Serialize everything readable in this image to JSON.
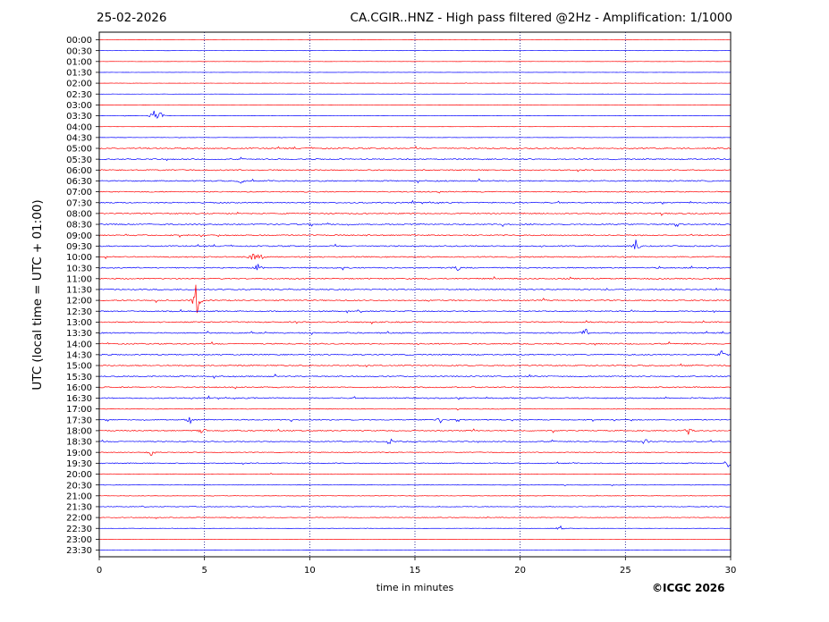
{
  "header": {
    "date": "25-02-2026",
    "title": "CA.CGIR..HNZ - High pass filtered @2Hz - Amplification: 1/1000"
  },
  "copyright": "©ICGC 2026",
  "colors": {
    "trace_a": "#ff0000",
    "trace_b": "#0000ff",
    "axis": "#000000",
    "grid": "#000080"
  },
  "chart_data": {
    "type": "line",
    "title": "CA.CGIR..HNZ - High pass filtered @2Hz - Amplification: 1/1000",
    "xlabel": "time in minutes",
    "ylabel": "UTC (local time = UTC + 01:00)",
    "xlim": [
      0,
      30
    ],
    "x_ticks": [
      0,
      5,
      10,
      15,
      20,
      25,
      30
    ],
    "grid": "vertical dotted lines at 5-minute intervals",
    "trace_color_cycle": [
      "red",
      "blue"
    ],
    "rows": [
      "00:00",
      "00:30",
      "01:00",
      "01:30",
      "02:00",
      "02:30",
      "03:00",
      "03:30",
      "04:00",
      "04:30",
      "05:00",
      "05:30",
      "06:00",
      "06:30",
      "07:00",
      "07:30",
      "08:00",
      "08:30",
      "09:00",
      "09:30",
      "10:00",
      "10:30",
      "11:00",
      "11:30",
      "12:00",
      "12:30",
      "13:00",
      "13:30",
      "14:00",
      "14:30",
      "15:00",
      "15:30",
      "16:00",
      "16:30",
      "17:00",
      "17:30",
      "18:00",
      "18:30",
      "19:00",
      "19:30",
      "20:00",
      "20:30",
      "21:00",
      "21:30",
      "22:00",
      "22:30",
      "23:00",
      "23:30"
    ],
    "noise_level": [
      0.15,
      0.15,
      0.2,
      0.15,
      0.2,
      0.15,
      0.2,
      0.25,
      0.1,
      0.25,
      1.0,
      1.0,
      1.0,
      1.0,
      0.9,
      1.0,
      1.0,
      1.0,
      1.0,
      1.0,
      1.0,
      1.0,
      1.0,
      1.0,
      1.0,
      1.0,
      1.0,
      1.0,
      1.0,
      1.0,
      1.0,
      1.0,
      1.0,
      1.0,
      0.6,
      0.8,
      0.9,
      0.8,
      0.7,
      0.8,
      0.5,
      0.4,
      0.4,
      0.6,
      0.6,
      0.2,
      0.1,
      0.1
    ],
    "events": [
      {
        "row": "03:30",
        "minute": 2.6,
        "amplitude": 0.9
      },
      {
        "row": "03:30",
        "minute": 2.9,
        "amplitude": 0.7
      },
      {
        "row": "06:30",
        "minute": 6.8,
        "amplitude": 0.5
      },
      {
        "row": "09:30",
        "minute": 25.5,
        "amplitude": 0.9
      },
      {
        "row": "10:00",
        "minute": 7.3,
        "amplitude": 1.0
      },
      {
        "row": "10:00",
        "minute": 7.6,
        "amplitude": 0.9
      },
      {
        "row": "10:30",
        "minute": 7.5,
        "amplitude": 0.8
      },
      {
        "row": "10:30",
        "minute": 17.0,
        "amplitude": 0.6
      },
      {
        "row": "12:00",
        "minute": 4.6,
        "amplitude": 2.5
      },
      {
        "row": "13:30",
        "minute": 23.1,
        "amplitude": 0.8
      },
      {
        "row": "14:30",
        "minute": 29.6,
        "amplitude": 0.8
      },
      {
        "row": "17:30",
        "minute": 4.3,
        "amplitude": 0.6
      },
      {
        "row": "17:30",
        "minute": 16.2,
        "amplitude": 0.6
      },
      {
        "row": "18:00",
        "minute": 4.9,
        "amplitude": 0.6
      },
      {
        "row": "18:00",
        "minute": 28.0,
        "amplitude": 0.5
      },
      {
        "row": "18:30",
        "minute": 13.8,
        "amplitude": 0.6
      },
      {
        "row": "18:30",
        "minute": 25.9,
        "amplitude": 0.6
      },
      {
        "row": "19:00",
        "minute": 2.5,
        "amplitude": 0.6
      },
      {
        "row": "19:30",
        "minute": 29.9,
        "amplitude": 1.0
      },
      {
        "row": "22:30",
        "minute": 21.9,
        "amplitude": 0.4
      }
    ]
  }
}
